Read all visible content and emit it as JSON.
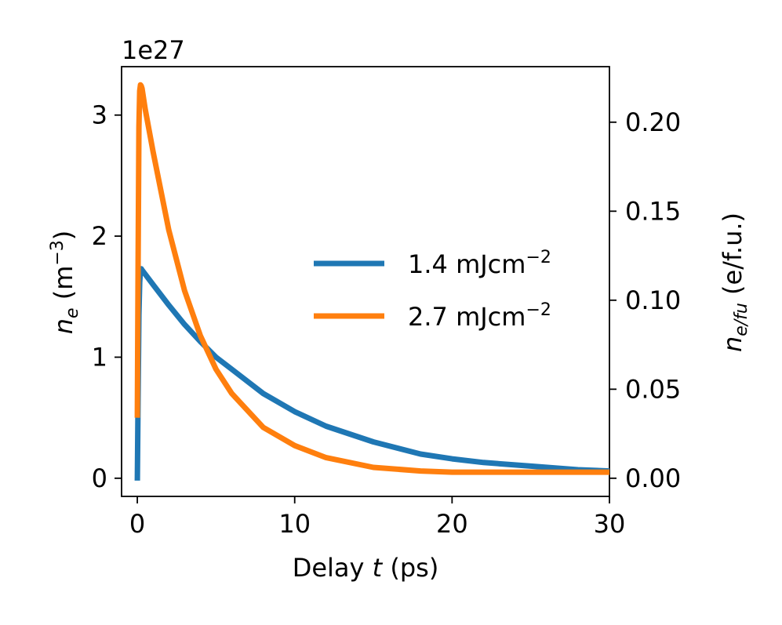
{
  "chart_data": {
    "type": "line",
    "x_label_prefix": "Delay ",
    "x_label_var": "t",
    "x_label_suffix": " (ps)",
    "y_label_var": "n",
    "y_label_sub": "e",
    "y_label_unit": " (m",
    "y_label_exp": "−3",
    "y_label_close": ")",
    "y_offset_text": "1e27",
    "y2_label_var": "n",
    "y2_label_sub": "e/fu",
    "y2_label_unit": " (e/f.u.)",
    "xlim": [
      -1,
      30
    ],
    "ylim": [
      -0.15,
      3.4
    ],
    "y2lim": [
      -0.0102,
      0.2312
    ],
    "x_ticks": [
      0,
      10,
      20,
      30
    ],
    "y_ticks": [
      0,
      1,
      2,
      3
    ],
    "y2_ticks": [
      "0.00",
      "0.05",
      "0.10",
      "0.15",
      "0.20"
    ],
    "grid": false,
    "legend_position": "center-right",
    "series": [
      {
        "name": "1.4 mJcm",
        "name_exp": "−2",
        "color": "#1f77b4",
        "x": [
          0.0,
          0.05,
          0.1,
          0.15,
          0.2,
          0.25,
          0.3,
          1.0,
          2.0,
          3.0,
          4.0,
          5.0,
          6.0,
          8.0,
          10.0,
          12.0,
          15.0,
          18.0,
          20.0,
          22.0,
          25.0,
          28.0,
          30.0
        ],
        "values": [
          -0.02,
          0.7,
          1.35,
          1.62,
          1.72,
          1.73,
          1.72,
          1.6,
          1.43,
          1.27,
          1.13,
          1.0,
          0.9,
          0.7,
          0.55,
          0.43,
          0.3,
          0.2,
          0.16,
          0.13,
          0.1,
          0.07,
          0.06
        ]
      },
      {
        "name": "2.7 mJcm",
        "name_exp": "−2",
        "color": "#ff7f0e",
        "x": [
          0.0,
          0.05,
          0.1,
          0.15,
          0.2,
          0.25,
          0.3,
          0.5,
          1.0,
          2.0,
          3.0,
          4.0,
          5.0,
          6.0,
          8.0,
          10.0,
          12.0,
          15.0,
          18.0,
          20.0,
          25.0,
          30.0
        ],
        "values": [
          0.5,
          1.8,
          2.9,
          3.2,
          3.25,
          3.24,
          3.22,
          3.05,
          2.7,
          2.05,
          1.55,
          1.18,
          0.9,
          0.7,
          0.42,
          0.27,
          0.17,
          0.09,
          0.06,
          0.05,
          0.05,
          0.05
        ]
      }
    ]
  }
}
